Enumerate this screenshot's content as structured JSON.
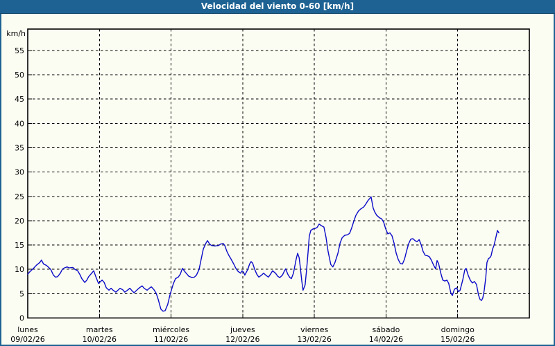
{
  "title_bar": {
    "title": "Velocidad del viento 0-60 [km/h]"
  },
  "colors": {
    "title_bar_bg": "#1d6293",
    "title_bar_edge": "#124769",
    "title_bar_fg": "#ffffff",
    "outer_border": "#1d6293",
    "page_bg": "#fbfcf2",
    "plot_frame": "#000000",
    "grid": "#000000",
    "labels": "#000000",
    "line": "#0a0ac8"
  },
  "chart_data": {
    "type": "line",
    "title": "Velocidad del viento 0-60 [km/h]",
    "y_unit": "km/h",
    "ylim": [
      0,
      60
    ],
    "y_ticks": [
      0,
      5,
      10,
      15,
      20,
      25,
      30,
      35,
      40,
      45,
      50,
      55
    ],
    "grid": "dashed",
    "legend_position": "none",
    "x_axis": {
      "hours_per_day": 24,
      "total_days": 7,
      "days": [
        {
          "name": "lunes",
          "date": "09/02/26"
        },
        {
          "name": "martes",
          "date": "10/02/26"
        },
        {
          "name": "miércoles",
          "date": "11/02/26"
        },
        {
          "name": "jueves",
          "date": "12/02/26"
        },
        {
          "name": "viernes",
          "date": "13/02/26"
        },
        {
          "name": "sábado",
          "date": "14/02/26"
        },
        {
          "name": "domingo",
          "date": "15/02/26"
        }
      ]
    },
    "series": [
      {
        "name": "velocidad-del-viento",
        "units": "km/h",
        "x_units": "hours_since_monday_00h",
        "points": [
          [
            0,
            9
          ],
          [
            0.7,
            9.5
          ],
          [
            1.9,
            10.2
          ],
          [
            3,
            10.9
          ],
          [
            4,
            11.4
          ],
          [
            4.6,
            11.9
          ],
          [
            5.3,
            11.1
          ],
          [
            6.3,
            10.8
          ],
          [
            7,
            10.4
          ],
          [
            7.7,
            10
          ],
          [
            8.6,
            8.8
          ],
          [
            9.3,
            8.4
          ],
          [
            10,
            8.5
          ],
          [
            10.9,
            9.2
          ],
          [
            11.6,
            10
          ],
          [
            12.3,
            10.3
          ],
          [
            13.2,
            10.5
          ],
          [
            13.9,
            10.3
          ],
          [
            15.1,
            10.4
          ],
          [
            15.8,
            10
          ],
          [
            16.7,
            9.7
          ],
          [
            17.4,
            9
          ],
          [
            18.1,
            8.1
          ],
          [
            19.1,
            7.3
          ],
          [
            19.8,
            7.8
          ],
          [
            20.4,
            8.5
          ],
          [
            21.4,
            9.2
          ],
          [
            22.1,
            9.7
          ],
          [
            22.8,
            8.5
          ],
          [
            23.7,
            7.1
          ],
          [
            24.9,
            7.8
          ],
          [
            25.6,
            7.3
          ],
          [
            26.3,
            6.2
          ],
          [
            27.2,
            5.7
          ],
          [
            27.9,
            6.1
          ],
          [
            28.6,
            5.7
          ],
          [
            29.5,
            5.3
          ],
          [
            30.2,
            5.7
          ],
          [
            30.9,
            6.1
          ],
          [
            31.8,
            5.8
          ],
          [
            32.5,
            5.3
          ],
          [
            33.2,
            5.6
          ],
          [
            34.2,
            6.1
          ],
          [
            34.9,
            5.6
          ],
          [
            35.6,
            5.2
          ],
          [
            36.5,
            5.7
          ],
          [
            37.2,
            6.1
          ],
          [
            38.3,
            6.6
          ],
          [
            39,
            6.1
          ],
          [
            40,
            5.7
          ],
          [
            40.7,
            6.1
          ],
          [
            41.4,
            6.4
          ],
          [
            42.3,
            5.8
          ],
          [
            43,
            5.1
          ],
          [
            43.7,
            3.8
          ],
          [
            44.6,
            1.8
          ],
          [
            45.3,
            1.4
          ],
          [
            46,
            1.5
          ],
          [
            46.9,
            2.8
          ],
          [
            47.6,
            4.7
          ],
          [
            48.1,
            5.7
          ],
          [
            48.8,
            7.1
          ],
          [
            49.5,
            8.1
          ],
          [
            50.4,
            8.4
          ],
          [
            51.1,
            9
          ],
          [
            51.8,
            10.2
          ],
          [
            52.8,
            9.4
          ],
          [
            53.9,
            8.6
          ],
          [
            55.1,
            8.3
          ],
          [
            55.8,
            8.4
          ],
          [
            56.5,
            8.8
          ],
          [
            57.4,
            10
          ],
          [
            58.1,
            12.1
          ],
          [
            58.8,
            14.2
          ],
          [
            59.7,
            15.4
          ],
          [
            60.2,
            15.9
          ],
          [
            60.9,
            15.2
          ],
          [
            61.6,
            14.9
          ],
          [
            62.7,
            14.8
          ],
          [
            63.9,
            14.9
          ],
          [
            64.6,
            15.2
          ],
          [
            65.5,
            15.3
          ],
          [
            66,
            14.9
          ],
          [
            66.7,
            13.7
          ],
          [
            67.4,
            12.8
          ],
          [
            68.1,
            12.1
          ],
          [
            69,
            11.1
          ],
          [
            69.7,
            10.2
          ],
          [
            70.4,
            9.6
          ],
          [
            71.3,
            9.2
          ],
          [
            71.8,
            9.7
          ],
          [
            72.3,
            9.4
          ],
          [
            72.7,
            8.8
          ],
          [
            73.7,
            10
          ],
          [
            74.3,
            11.1
          ],
          [
            74.8,
            11.6
          ],
          [
            75.3,
            11.3
          ],
          [
            76,
            10
          ],
          [
            76.7,
            9
          ],
          [
            77.4,
            8.4
          ],
          [
            78.3,
            8.8
          ],
          [
            79,
            9.2
          ],
          [
            79.7,
            8.8
          ],
          [
            80.6,
            8.4
          ],
          [
            81.3,
            9
          ],
          [
            82,
            9.7
          ],
          [
            83,
            9.2
          ],
          [
            83.7,
            8.6
          ],
          [
            84.4,
            8.3
          ],
          [
            85.3,
            8.8
          ],
          [
            86,
            9.7
          ],
          [
            86.4,
            10.1
          ],
          [
            87.1,
            9
          ],
          [
            87.8,
            8.3
          ],
          [
            88.3,
            8.1
          ],
          [
            89,
            9.2
          ],
          [
            89.9,
            12.1
          ],
          [
            90.4,
            13.3
          ],
          [
            90.9,
            12.4
          ],
          [
            91.3,
            10.4
          ],
          [
            91.8,
            7.5
          ],
          [
            92.2,
            5.7
          ],
          [
            92.9,
            6.8
          ],
          [
            93.4,
            10
          ],
          [
            93.9,
            13.6
          ],
          [
            94.3,
            16.8
          ],
          [
            94.8,
            18
          ],
          [
            95.5,
            18.3
          ],
          [
            96.2,
            18.4
          ],
          [
            96.9,
            18.6
          ],
          [
            97.6,
            19.3
          ],
          [
            98.3,
            19
          ],
          [
            99.2,
            18.7
          ],
          [
            99.9,
            16.6
          ],
          [
            100.6,
            13.7
          ],
          [
            101.5,
            11
          ],
          [
            102.2,
            10.5
          ],
          [
            102.9,
            11.4
          ],
          [
            103.9,
            13.3
          ],
          [
            104.6,
            15.4
          ],
          [
            105.3,
            16.5
          ],
          [
            106.2,
            17
          ],
          [
            107.1,
            17.1
          ],
          [
            107.8,
            17.4
          ],
          [
            108.5,
            18.5
          ],
          [
            109.2,
            19.9
          ],
          [
            109.9,
            21.1
          ],
          [
            110.8,
            22
          ],
          [
            111.5,
            22.4
          ],
          [
            112.5,
            22.8
          ],
          [
            113.2,
            23.4
          ],
          [
            113.9,
            24.1
          ],
          [
            114.6,
            24.6
          ],
          [
            115,
            24.9
          ],
          [
            115.7,
            22.6
          ],
          [
            116.2,
            21.8
          ],
          [
            116.9,
            21.1
          ],
          [
            117.8,
            20.6
          ],
          [
            118.5,
            20.4
          ],
          [
            119.2,
            19.7
          ],
          [
            119.9,
            18.3
          ],
          [
            120.6,
            17.3
          ],
          [
            121.3,
            17.5
          ],
          [
            122,
            16.9
          ],
          [
            122.7,
            15.4
          ],
          [
            123.4,
            13.3
          ],
          [
            124.1,
            12
          ],
          [
            124.8,
            11.2
          ],
          [
            125.5,
            11.1
          ],
          [
            126.2,
            12.1
          ],
          [
            126.9,
            13.8
          ],
          [
            127.6,
            15.3
          ],
          [
            128.3,
            16.2
          ],
          [
            129,
            16.3
          ],
          [
            129.7,
            15.9
          ],
          [
            130.4,
            15.7
          ],
          [
            131.1,
            16.1
          ],
          [
            131.8,
            15
          ],
          [
            132.4,
            13.7
          ],
          [
            133.1,
            12.9
          ],
          [
            133.8,
            12.8
          ],
          [
            134.5,
            12.6
          ],
          [
            135.2,
            11.9
          ],
          [
            135.9,
            10.9
          ],
          [
            136.6,
            10.1
          ],
          [
            137.1,
            11.8
          ],
          [
            137.6,
            11.2
          ],
          [
            138.3,
            9.3
          ],
          [
            139,
            7.8
          ],
          [
            139.7,
            7.6
          ],
          [
            140.4,
            7.8
          ],
          [
            141,
            7.1
          ],
          [
            141.7,
            5.2
          ],
          [
            142.2,
            4.6
          ],
          [
            142.9,
            5.9
          ],
          [
            143.6,
            6.2
          ],
          [
            144.3,
            5.4
          ],
          [
            144.8,
            5.7
          ],
          [
            145.7,
            7.8
          ],
          [
            146.4,
            9.9
          ],
          [
            146.8,
            10.2
          ],
          [
            147.5,
            8.8
          ],
          [
            148.2,
            7.8
          ],
          [
            148.9,
            7.2
          ],
          [
            149.6,
            7.5
          ],
          [
            150.3,
            6.9
          ],
          [
            151,
            4.7
          ],
          [
            151.5,
            3.8
          ],
          [
            152,
            3.6
          ],
          [
            152.4,
            4.1
          ],
          [
            152.9,
            5.7
          ],
          [
            153.4,
            8.3
          ],
          [
            153.8,
            11.4
          ],
          [
            154.3,
            12.2
          ],
          [
            154.8,
            12.4
          ],
          [
            155.2,
            12.8
          ],
          [
            155.7,
            14.2
          ],
          [
            156.1,
            14.8
          ],
          [
            156.6,
            16
          ],
          [
            157.1,
            17.4
          ],
          [
            157.3,
            18
          ],
          [
            157.8,
            17.5
          ]
        ]
      }
    ]
  }
}
